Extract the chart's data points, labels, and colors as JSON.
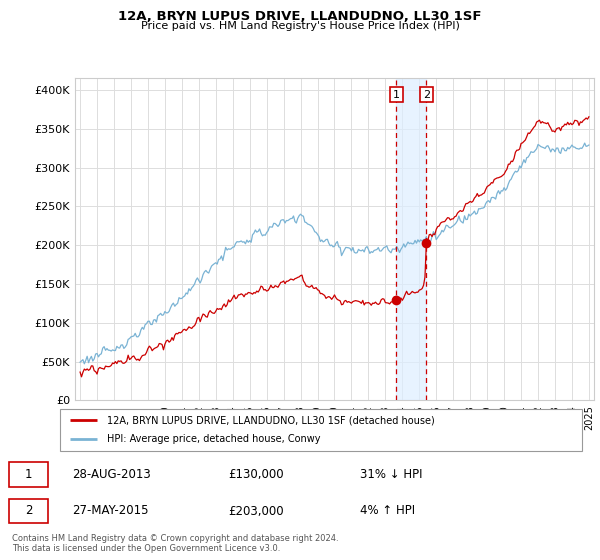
{
  "title": "12A, BRYN LUPUS DRIVE, LLANDUDNO, LL30 1SF",
  "subtitle": "Price paid vs. HM Land Registry's House Price Index (HPI)",
  "ytick_values": [
    0,
    50000,
    100000,
    150000,
    200000,
    250000,
    300000,
    350000,
    400000
  ],
  "ylim": [
    0,
    415000
  ],
  "hpi_color": "#7ab3d4",
  "price_color": "#cc0000",
  "marker1_x": 2013.64,
  "marker2_x": 2015.41,
  "marker1_price": 130000,
  "marker2_price": 203000,
  "vspan_color": "#ddeeff",
  "legend_line1": "12A, BRYN LUPUS DRIVE, LLANDUDNO, LL30 1SF (detached house)",
  "legend_line2": "HPI: Average price, detached house, Conwy",
  "table_row1": [
    "1",
    "28-AUG-2013",
    "£130,000",
    "31% ↓ HPI"
  ],
  "table_row2": [
    "2",
    "27-MAY-2015",
    "£203,000",
    "4% ↑ HPI"
  ],
  "footer": "Contains HM Land Registry data © Crown copyright and database right 2024.\nThis data is licensed under the Open Government Licence v3.0."
}
